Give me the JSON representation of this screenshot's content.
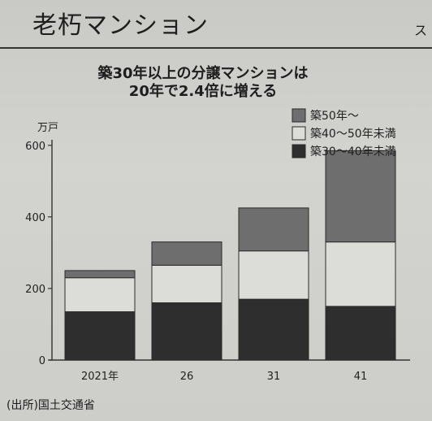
{
  "header": {
    "title": "老朽マンション",
    "edge_char": "ス"
  },
  "chart_data": {
    "type": "bar",
    "stacked": true,
    "title_line1": "築30年以上の分譲マンションは",
    "title_line2": "20年で2.4倍に増える",
    "ylabel": "万戸",
    "ylim": [
      0,
      620
    ],
    "yticks": [
      0,
      200,
      400,
      600
    ],
    "categories": [
      "2021年",
      "26",
      "31",
      "41"
    ],
    "legend_position": "top-right",
    "series": [
      {
        "name": "築30〜40年未満",
        "color": "#2e2e2e",
        "values": [
          135,
          160,
          170,
          150
        ]
      },
      {
        "name": "築40〜50年未満",
        "color": "#dcdcd8",
        "values": [
          95,
          105,
          135,
          180
        ]
      },
      {
        "name": "築50年〜",
        "color": "#6e6e6e",
        "values": [
          20,
          65,
          120,
          255
        ]
      }
    ]
  },
  "footer": {
    "source": "(出所)国土交通省"
  }
}
